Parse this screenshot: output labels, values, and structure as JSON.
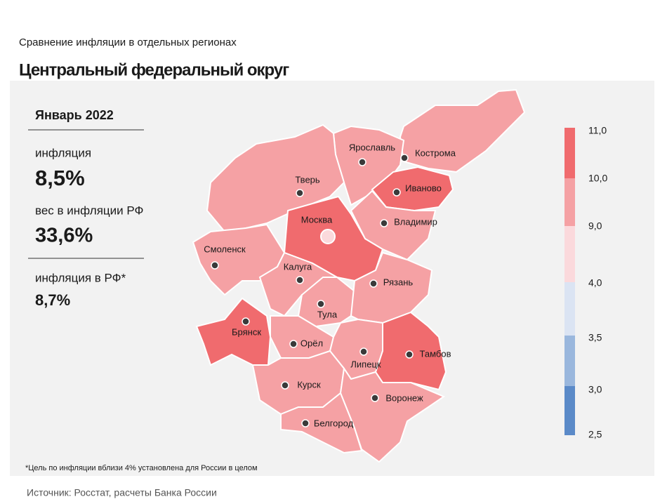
{
  "header": {
    "subtitle": "Сравнение инфляции в отдельных регионах",
    "title": "Центральный федеральный округ"
  },
  "panel": {
    "period": "Январь 2022",
    "inflation_label": "инфляция",
    "inflation_value": "8,5%",
    "weight_label": "вес в инфляции РФ",
    "weight_value": "33,6%",
    "rf_label": "инфляция в РФ*",
    "rf_value": "8,7%"
  },
  "regions": [
    {
      "name": "Кострома",
      "color": "#f5a1a4"
    },
    {
      "name": "Ярославль",
      "color": "#f5a1a4"
    },
    {
      "name": "Тверь",
      "color": "#f5a1a4"
    },
    {
      "name": "Иваново",
      "color": "#f06b6e"
    },
    {
      "name": "Москва",
      "color": "#f06b6e"
    },
    {
      "name": "Владимир",
      "color": "#f5a1a4"
    },
    {
      "name": "Смоленск",
      "color": "#f5a1a4"
    },
    {
      "name": "Калуга",
      "color": "#f5a1a4"
    },
    {
      "name": "Тула",
      "color": "#f5a1a4"
    },
    {
      "name": "Рязань",
      "color": "#f5a1a4"
    },
    {
      "name": "Брянск",
      "color": "#f06b6e"
    },
    {
      "name": "Орёл",
      "color": "#f5a1a4"
    },
    {
      "name": "Липецк",
      "color": "#f5a1a4"
    },
    {
      "name": "Тамбов",
      "color": "#f06b6e"
    },
    {
      "name": "Курск",
      "color": "#f5a1a4"
    },
    {
      "name": "Воронеж",
      "color": "#f5a1a4"
    },
    {
      "name": "Белгород",
      "color": "#f5a1a4"
    }
  ],
  "legend": {
    "labels": [
      "11,0",
      "10,0",
      "9,0",
      "4,0",
      "3,5",
      "3,0",
      "2,5"
    ],
    "colors": [
      "#f06b6e",
      "#f5a1a4",
      "#fbd9dc",
      "#dbe4f3",
      "#9ab7dd",
      "#5b8ac8"
    ]
  },
  "footnote": "*Цель по инфляции вблизи 4% установлена для России в целом",
  "source": "Источник: Росстат, расчеты Банка России"
}
